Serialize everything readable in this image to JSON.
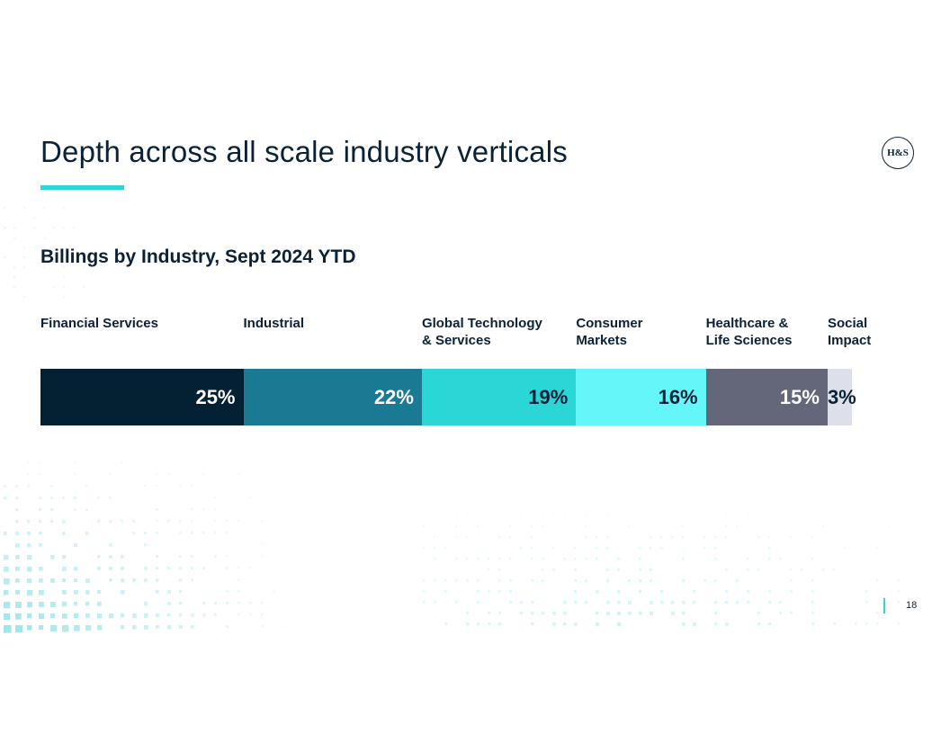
{
  "slide": {
    "title": "Depth across all scale industry verticals",
    "logo_text": "H&S",
    "page_number": "18"
  },
  "colors": {
    "accent": "#2bd6d6",
    "title_text": "#0b2236"
  },
  "chart_data": {
    "type": "bar",
    "orientation": "horizontal-stacked",
    "title": "Billings by Industry, Sept 2024 YTD",
    "unit": "%",
    "categories": [
      "Financial Services",
      "Industrial",
      "Global Technology & Services",
      "Consumer Markets",
      "Healthcare & Life Sciences",
      "Social Impact"
    ],
    "category_label_lines": [
      [
        "Financial Services"
      ],
      [
        "Industrial"
      ],
      [
        "Global Technology",
        "& Services"
      ],
      [
        "Consumer",
        "Markets"
      ],
      [
        "Healthcare &",
        "Life Sciences"
      ],
      [
        "Social",
        "Impact"
      ]
    ],
    "values": [
      25,
      22,
      19,
      16,
      15,
      3
    ],
    "value_labels": [
      "25%",
      "22%",
      "19%",
      "16%",
      "15%",
      "3%"
    ],
    "colors": [
      "#042033",
      "#1b7a93",
      "#2bd6d6",
      "#64f6f8",
      "#636779",
      "#dde0e9"
    ],
    "label_colors": [
      "#ffffff",
      "#ffffff",
      "#0b2236",
      "#0b2236",
      "#ffffff",
      "#0b2236"
    ],
    "legend": "none",
    "grid": false
  }
}
